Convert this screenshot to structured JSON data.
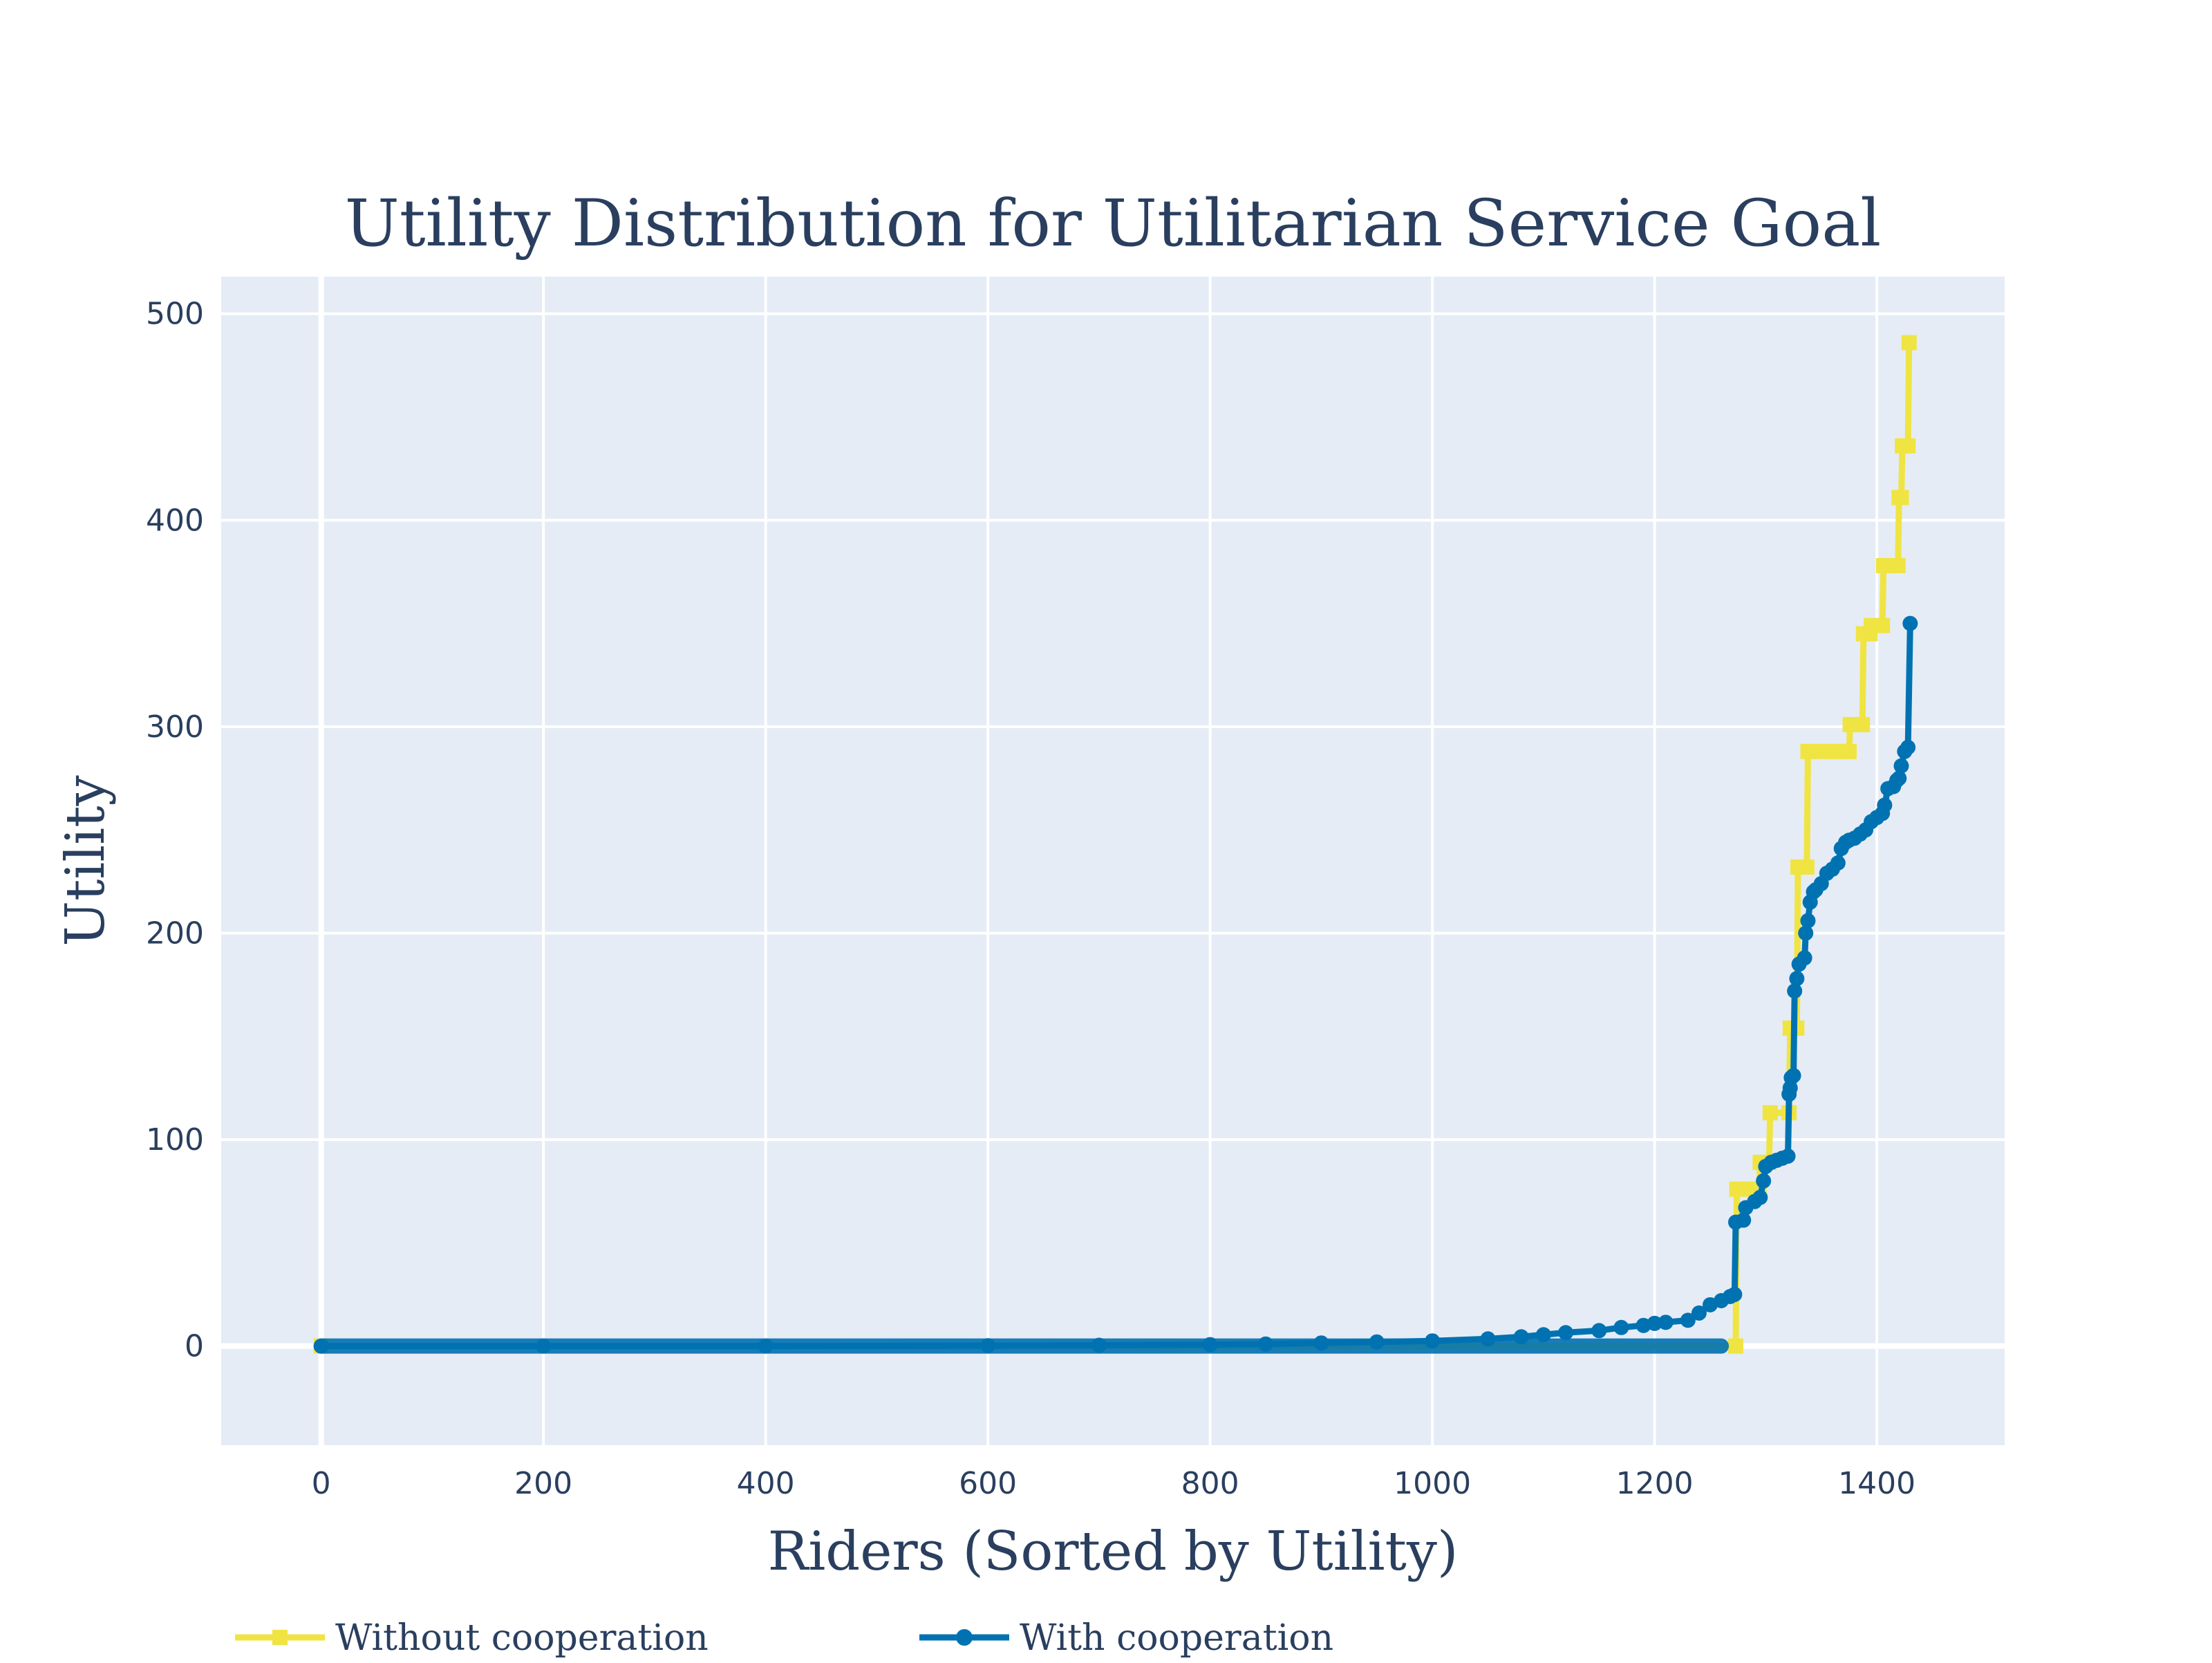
{
  "chart_data": {
    "type": "line",
    "title": "Utility Distribution for Utilitarian Service Goal",
    "xlabel": "Riders (Sorted by Utility)",
    "ylabel": "Utility",
    "xlim": [
      -90,
      1515
    ],
    "ylim": [
      -48,
      518
    ],
    "x_ticks": [
      0,
      200,
      400,
      600,
      800,
      1000,
      1200,
      1400
    ],
    "y_ticks": [
      0,
      100,
      200,
      300,
      400,
      500
    ],
    "grid": true,
    "legend_placement": "bottom",
    "colors": {
      "plot_background": "#e5ecf6",
      "grid": "#ffffff",
      "text": "#2a3f5f",
      "without_cooperation": "#f0e442",
      "with_cooperation": "#0072b2"
    },
    "series": [
      {
        "name": "Without cooperation",
        "marker": "square",
        "color": "#f0e442",
        "x": [
          0,
          1273,
          1274,
          1285,
          1294,
          1295,
          1303,
          1304,
          1321,
          1322,
          1328,
          1329,
          1337,
          1338,
          1350,
          1360,
          1370,
          1375,
          1376,
          1385,
          1387,
          1388,
          1394,
          1395,
          1405,
          1406,
          1410,
          1419,
          1420,
          1422,
          1423,
          1428,
          1429
        ],
        "y": [
          0,
          0,
          76,
          76,
          76,
          89,
          89,
          113,
          113,
          154,
          154,
          232,
          232,
          288,
          288,
          288,
          288,
          288,
          301,
          301,
          301,
          345,
          345,
          349,
          349,
          378,
          378,
          378,
          411,
          411,
          436,
          436,
          486
        ]
      },
      {
        "name": "With cooperation",
        "marker": "circle",
        "color": "#0072b2",
        "x": [
          0,
          200,
          400,
          600,
          700,
          800,
          850,
          900,
          950,
          1000,
          1050,
          1080,
          1100,
          1120,
          1150,
          1170,
          1190,
          1200,
          1210,
          1230,
          1240,
          1250,
          1260,
          1268,
          1272,
          1273,
          1280,
          1282,
          1290,
          1295,
          1298,
          1300,
          1305,
          1310,
          1315,
          1320,
          1321,
          1322,
          1323,
          1325,
          1326,
          1328,
          1330,
          1335,
          1336,
          1338,
          1340,
          1343,
          1345,
          1350,
          1355,
          1360,
          1365,
          1368,
          1372,
          1375,
          1380,
          1385,
          1390,
          1395,
          1400,
          1405,
          1407,
          1410,
          1415,
          1418,
          1420,
          1422,
          1425,
          1428,
          1430
        ],
        "y": [
          0,
          0,
          0,
          0.2,
          0.4,
          0.7,
          1,
          1.5,
          2,
          2.5,
          3.5,
          4.5,
          5.5,
          6.5,
          7.5,
          9,
          10,
          11,
          11.5,
          12.5,
          16,
          20,
          22,
          24,
          25,
          60,
          61,
          67,
          70,
          72,
          80,
          87,
          89,
          90,
          91,
          92,
          122,
          125,
          130,
          131,
          172,
          178,
          185,
          188,
          200,
          206,
          215,
          220,
          221,
          224,
          229,
          231,
          234,
          241,
          244,
          245,
          246,
          248,
          250,
          254,
          256,
          258,
          262,
          270,
          271,
          274,
          275,
          281,
          288,
          290,
          350
        ]
      }
    ]
  }
}
